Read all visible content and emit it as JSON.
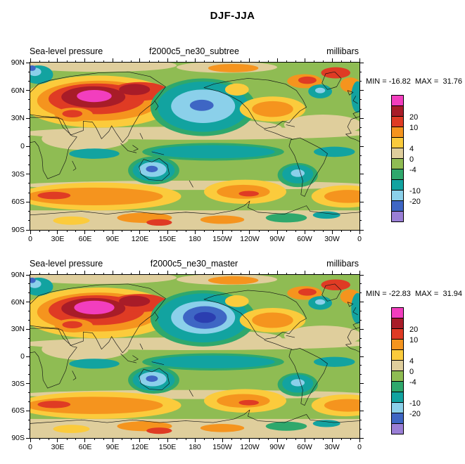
{
  "title": "DJF-JJA",
  "panels": [
    {
      "variable": "Sea-level pressure",
      "case": "f2000c5_ne30_subtree",
      "units": "millibars",
      "minmax": "MIN = -16.82  MAX =  31.76",
      "min": -16.82,
      "max": 31.76
    },
    {
      "variable": "Sea-level pressure",
      "case": "f2000c5_ne30_master",
      "units": "millibars",
      "minmax": "MIN = -22.83  MAX =  31.94",
      "min": -22.83,
      "max": 31.94
    }
  ],
  "axes": {
    "lon_labels": [
      "0",
      "30E",
      "60E",
      "90E",
      "120E",
      "150E",
      "180",
      "150W",
      "120W",
      "90W",
      "60W",
      "30W",
      "0"
    ],
    "lat_labels": [
      "90N",
      "60N",
      "30N",
      "0",
      "30S",
      "60S",
      "90S"
    ]
  },
  "colorbar": {
    "segments": [
      {
        "color": "#F23EBE",
        "label": ""
      },
      {
        "color": "#A81C28",
        "label": "20"
      },
      {
        "color": "#DF3B24",
        "label": "10"
      },
      {
        "color": "#F5941E",
        "label": ""
      },
      {
        "color": "#FBCB3C",
        "label": "4"
      },
      {
        "color": "#DFCE9C",
        "label": "0"
      },
      {
        "color": "#8FBC53",
        "label": "-4"
      },
      {
        "color": "#2FA86C",
        "label": ""
      },
      {
        "color": "#12A3A0",
        "label": "-10"
      },
      {
        "color": "#8BD0EA",
        "label": "-20"
      },
      {
        "color": "#3E66C4",
        "label": ""
      },
      {
        "color": "#9A7FD6",
        "label": ""
      }
    ]
  },
  "chart_data": {
    "type": "heatmap",
    "subtype": "filled-contour-global-map",
    "title": "DJF-JJA",
    "variable": "Sea-level pressure",
    "units": "millibars",
    "x_ticks": [
      "0",
      "30E",
      "60E",
      "90E",
      "120E",
      "150E",
      "180",
      "150W",
      "120W",
      "90W",
      "60W",
      "30W",
      "0"
    ],
    "y_ticks": [
      "90N",
      "60N",
      "30N",
      "0",
      "30S",
      "60S",
      "90S"
    ],
    "contour_labels": [
      20,
      10,
      4,
      0,
      -4,
      -10,
      -20
    ],
    "palette_top_to_bottom": [
      "#F23EBE",
      "#A81C28",
      "#DF3B24",
      "#F5941E",
      "#FBCB3C",
      "#DFCE9C",
      "#8FBC53",
      "#2FA86C",
      "#12A3A0",
      "#8BD0EA",
      "#3E66C4",
      "#9A7FD6"
    ],
    "panels": [
      {
        "name": "f2000c5_ne30_subtree",
        "min": -16.82,
        "max": 31.76
      },
      {
        "name": "f2000c5_ne30_master",
        "min": -22.83,
        "max": 31.94
      }
    ],
    "features": [
      "Strong positive DJF-JJA SLP difference (>20 mb, peak >30 mb, magenta core) over central Asia / Siberia",
      "Negative difference center over the North Pacific (deeper in master run, min < -20 mb)",
      "Positive band over the Southern Ocean near 50-60S and the South Pacific",
      "Negative centers over Australia, subtropical South America, and the NE Atlantic / Nordic seas",
      "Warm positive patches over North America, Greenland and the Arctic coast"
    ],
    "legend_position": "right",
    "grid": false
  }
}
